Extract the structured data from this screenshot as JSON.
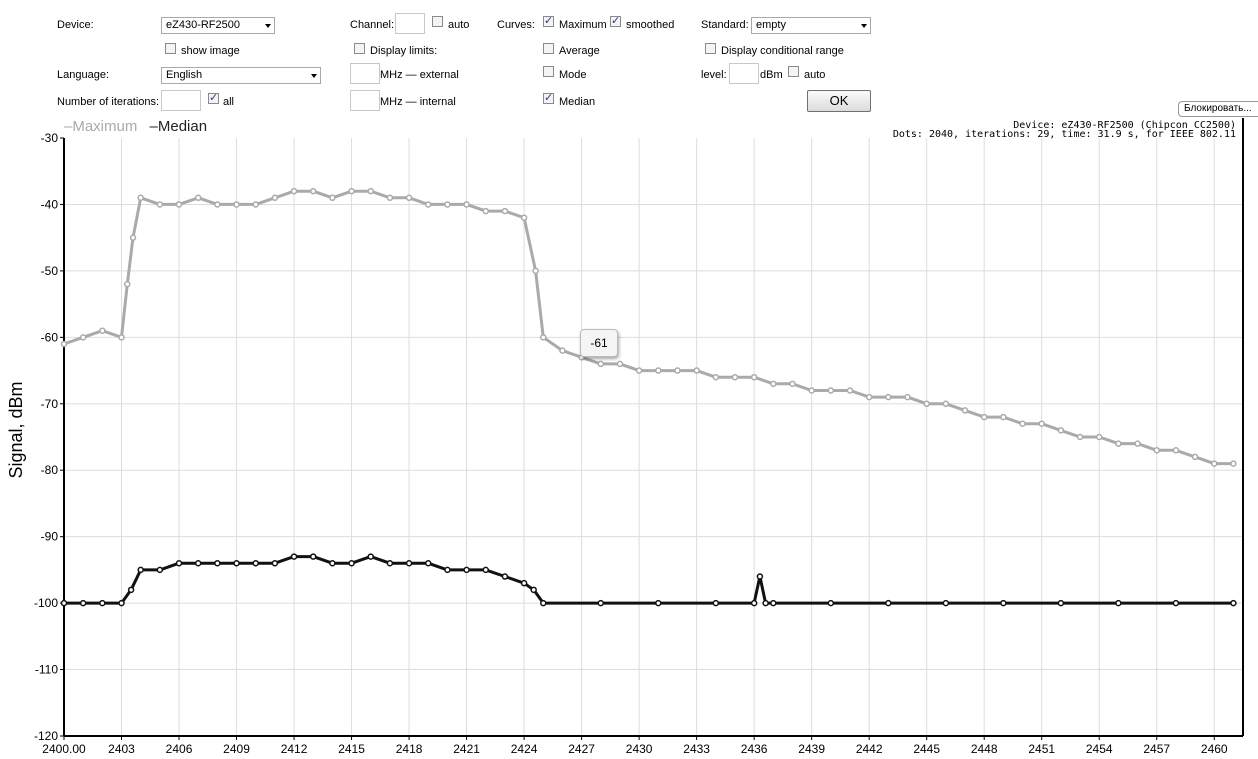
{
  "controls": {
    "device_label": "Device:",
    "device_value": "eZ430-RF2500",
    "show_image_label": "show image",
    "show_image_checked": false,
    "language_label": "Language:",
    "language_value": "English",
    "iterations_label": "Number of iterations:",
    "iterations_value": "",
    "all_label": "all",
    "all_checked": true,
    "channel_label": "Channel:",
    "channel_value": "",
    "channel_auto_label": "auto",
    "channel_auto_checked": false,
    "display_limits_label": "Display limits:",
    "display_limits_checked": false,
    "mhz_external_label": "MHz — external",
    "mhz_internal_label": "MHz — internal",
    "curves_label": "Curves:",
    "maximum_label": "Maximum",
    "maximum_checked": true,
    "smoothed_label": "smoothed",
    "smoothed_checked": true,
    "average_label": "Average",
    "average_checked": false,
    "mode_label": "Mode",
    "mode_checked": false,
    "median_label": "Median",
    "median_checked": true,
    "standard_label": "Standard:",
    "standard_value": "empty",
    "display_conditional_label": "Display conditional range",
    "display_conditional_checked": false,
    "level_label": "level:",
    "level_unit": "dBm",
    "level_auto_label": "auto",
    "level_auto_checked": false,
    "ok_label": "OK",
    "block_label": "Блокировать..."
  },
  "info": {
    "line1": "Device: eZ430-RF2500 (Chipcon CC2500)",
    "line2": "Dots: 2040, iterations: 29, time: 31.9 s, for IEEE 802.11"
  },
  "tooltip": "-61",
  "colors": {
    "maximum": "#aaaaaa",
    "median": "#111111",
    "grid": "#dddddd"
  },
  "chart_data": {
    "type": "line",
    "ylabel": "Signal, dBm",
    "xlabel": "",
    "xlim": [
      2400,
      2461.5
    ],
    "ylim": [
      -120,
      -30
    ],
    "x_ticks": [
      "2400.00",
      "2403",
      "2406",
      "2409",
      "2412",
      "2415",
      "2418",
      "2421",
      "2424",
      "2427",
      "2430",
      "2433",
      "2436",
      "2439",
      "2442",
      "2445",
      "2448",
      "2451",
      "2454",
      "2457",
      "2460"
    ],
    "y_ticks": [
      "-30",
      "-40",
      "-50",
      "-60",
      "-70",
      "-80",
      "-90",
      "-100",
      "-110",
      "-120"
    ],
    "legend_position": "top-left",
    "series": [
      {
        "name": "Maximum",
        "x": [
          2400,
          2401,
          2402,
          2403,
          2403.3,
          2403.6,
          2404,
          2405,
          2406,
          2407,
          2408,
          2409,
          2410,
          2411,
          2412,
          2413,
          2414,
          2415,
          2416,
          2417,
          2418,
          2419,
          2420,
          2421,
          2422,
          2423,
          2424,
          2424.6,
          2425,
          2426,
          2427,
          2428,
          2429,
          2430,
          2431,
          2432,
          2433,
          2434,
          2435,
          2436,
          2437,
          2438,
          2439,
          2440,
          2441,
          2442,
          2443,
          2444,
          2445,
          2446,
          2447,
          2448,
          2449,
          2450,
          2451,
          2452,
          2453,
          2454,
          2455,
          2456,
          2457,
          2458,
          2459,
          2460,
          2461
        ],
        "values": [
          -61,
          -60,
          -59,
          -60,
          -52,
          -45,
          -39,
          -40,
          -40,
          -39,
          -40,
          -40,
          -40,
          -39,
          -38,
          -38,
          -39,
          -38,
          -38,
          -39,
          -39,
          -40,
          -40,
          -40,
          -41,
          -41,
          -42,
          -50,
          -60,
          -62,
          -63,
          -64,
          -64,
          -65,
          -65,
          -65,
          -65,
          -66,
          -66,
          -66,
          -67,
          -67,
          -68,
          -68,
          -68,
          -69,
          -69,
          -69,
          -70,
          -70,
          -71,
          -72,
          -72,
          -73,
          -73,
          -74,
          -75,
          -75,
          -76,
          -76,
          -77,
          -77,
          -78,
          -79,
          -79
        ]
      },
      {
        "name": "Median",
        "x": [
          2400,
          2401,
          2402,
          2403,
          2403.5,
          2404,
          2405,
          2406,
          2407,
          2408,
          2409,
          2410,
          2411,
          2412,
          2413,
          2414,
          2415,
          2416,
          2417,
          2418,
          2419,
          2420,
          2421,
          2422,
          2423,
          2424,
          2424.5,
          2425,
          2428,
          2431,
          2434,
          2436,
          2436.3,
          2436.6,
          2437,
          2440,
          2443,
          2446,
          2449,
          2452,
          2455,
          2458,
          2461
        ],
        "values": [
          -100,
          -100,
          -100,
          -100,
          -98,
          -95,
          -95,
          -94,
          -94,
          -94,
          -94,
          -94,
          -94,
          -93,
          -93,
          -94,
          -94,
          -93,
          -94,
          -94,
          -94,
          -95,
          -95,
          -95,
          -96,
          -97,
          -98,
          -100,
          -100,
          -100,
          -100,
          -100,
          -96,
          -100,
          -100,
          -100,
          -100,
          -100,
          -100,
          -100,
          -100,
          -100,
          -100
        ]
      }
    ]
  }
}
